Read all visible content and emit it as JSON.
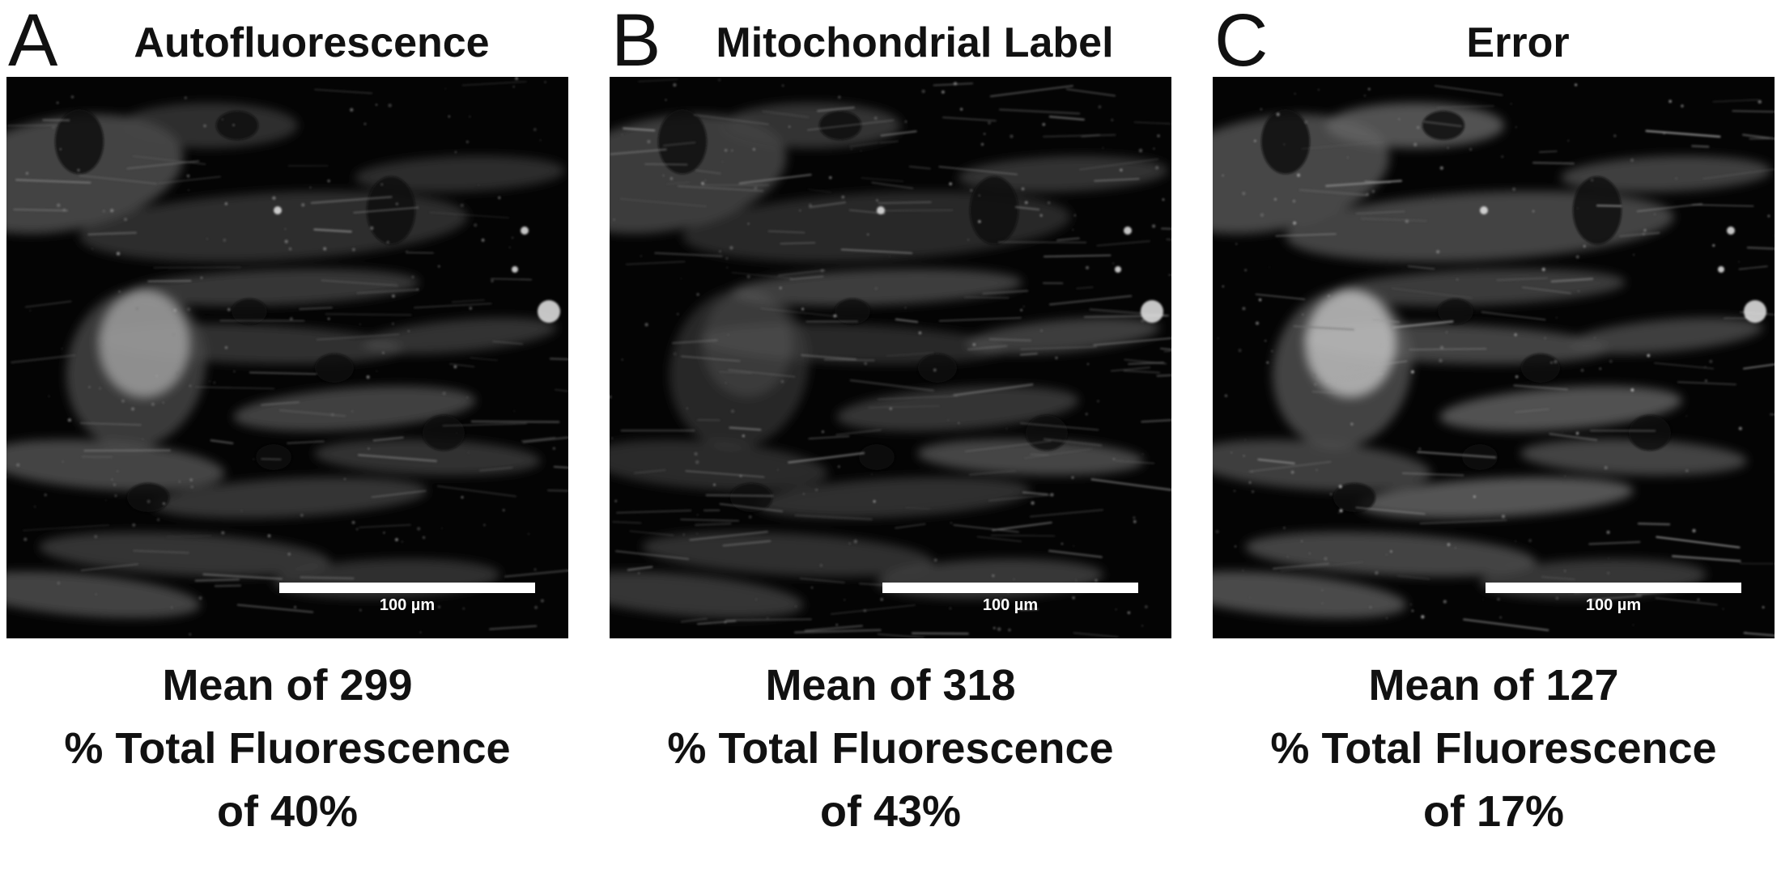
{
  "panels": [
    {
      "letter": "A",
      "title": "Autofluorescence",
      "scale_bar_label": "100 µm",
      "stats_line1": "Mean of 299",
      "stats_line2": "% Total Fluorescence",
      "stats_line3": "of 40%",
      "brightness": 0.55
    },
    {
      "letter": "B",
      "title": "Mitochondrial Label",
      "scale_bar_label": "100 µm",
      "stats_line1": "Mean of 318",
      "stats_line2": "% Total Fluorescence",
      "stats_line3": "of 43%",
      "brightness": 0.6
    },
    {
      "letter": "C",
      "title": "Error",
      "scale_bar_label": "100 µm",
      "stats_line1": "Mean of 127",
      "stats_line2": "% Total Fluorescence",
      "stats_line3": "of 17%",
      "brightness": 0.85
    }
  ]
}
